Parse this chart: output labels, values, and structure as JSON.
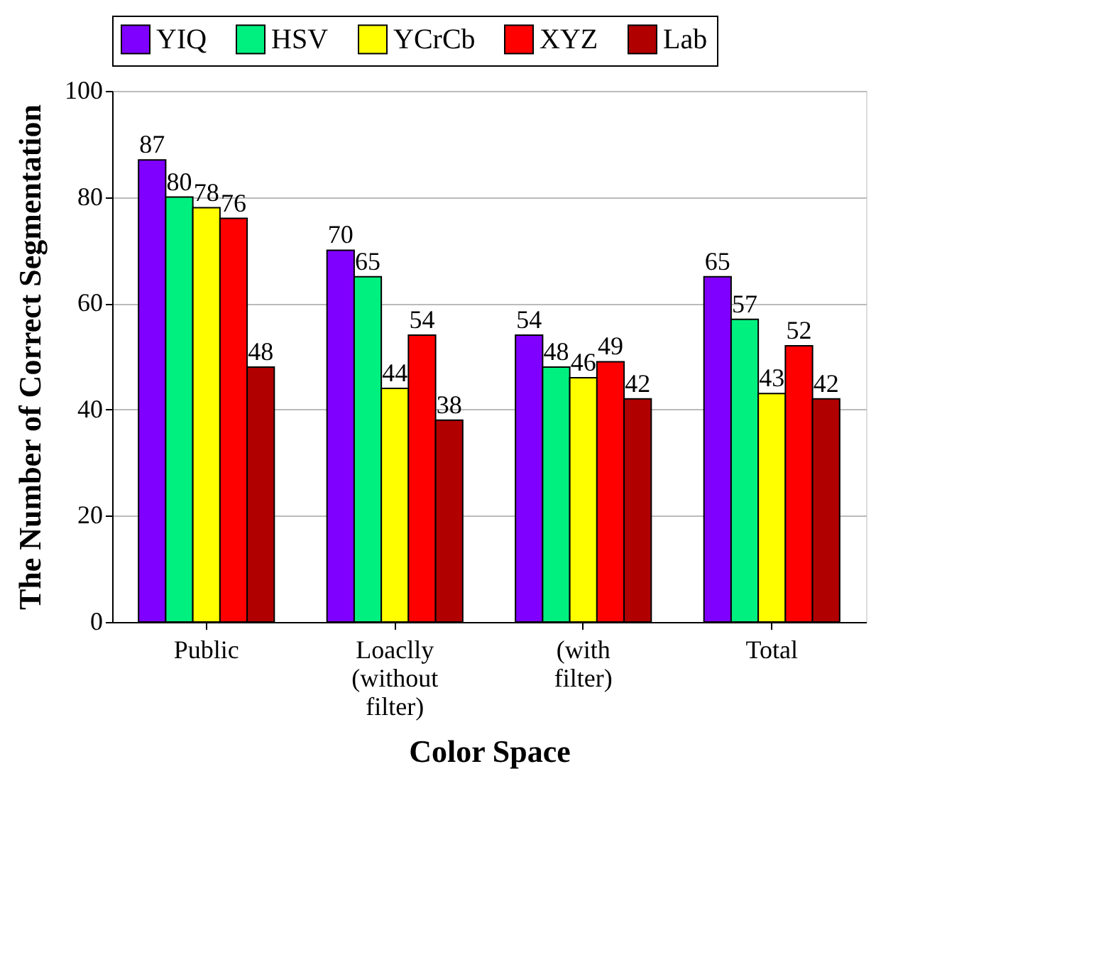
{
  "chart_data": {
    "type": "bar",
    "xlabel": "Color Space",
    "ylabel": "The Number of Correct Segmentation",
    "categories": [
      "Public",
      "Loaclly (without filter)",
      "(with filter)",
      "Total"
    ],
    "series": [
      {
        "name": "YIQ",
        "color": "#8000ff",
        "values": [
          87,
          70,
          54,
          65
        ]
      },
      {
        "name": "HSV",
        "color": "#00f080",
        "values": [
          80,
          65,
          48,
          57
        ]
      },
      {
        "name": "YCrCb",
        "color": "#ffff00",
        "values": [
          78,
          44,
          46,
          43
        ]
      },
      {
        "name": "XYZ",
        "color": "#ff0000",
        "values": [
          76,
          54,
          49,
          52
        ]
      },
      {
        "name": "Lab",
        "color": "#b00000",
        "values": [
          48,
          38,
          42,
          42
        ]
      }
    ],
    "ylim": [
      0,
      100
    ],
    "yticks": [
      0,
      20,
      40,
      60,
      80,
      100
    ],
    "grid": "y",
    "legend": "top",
    "data_labels": true
  }
}
